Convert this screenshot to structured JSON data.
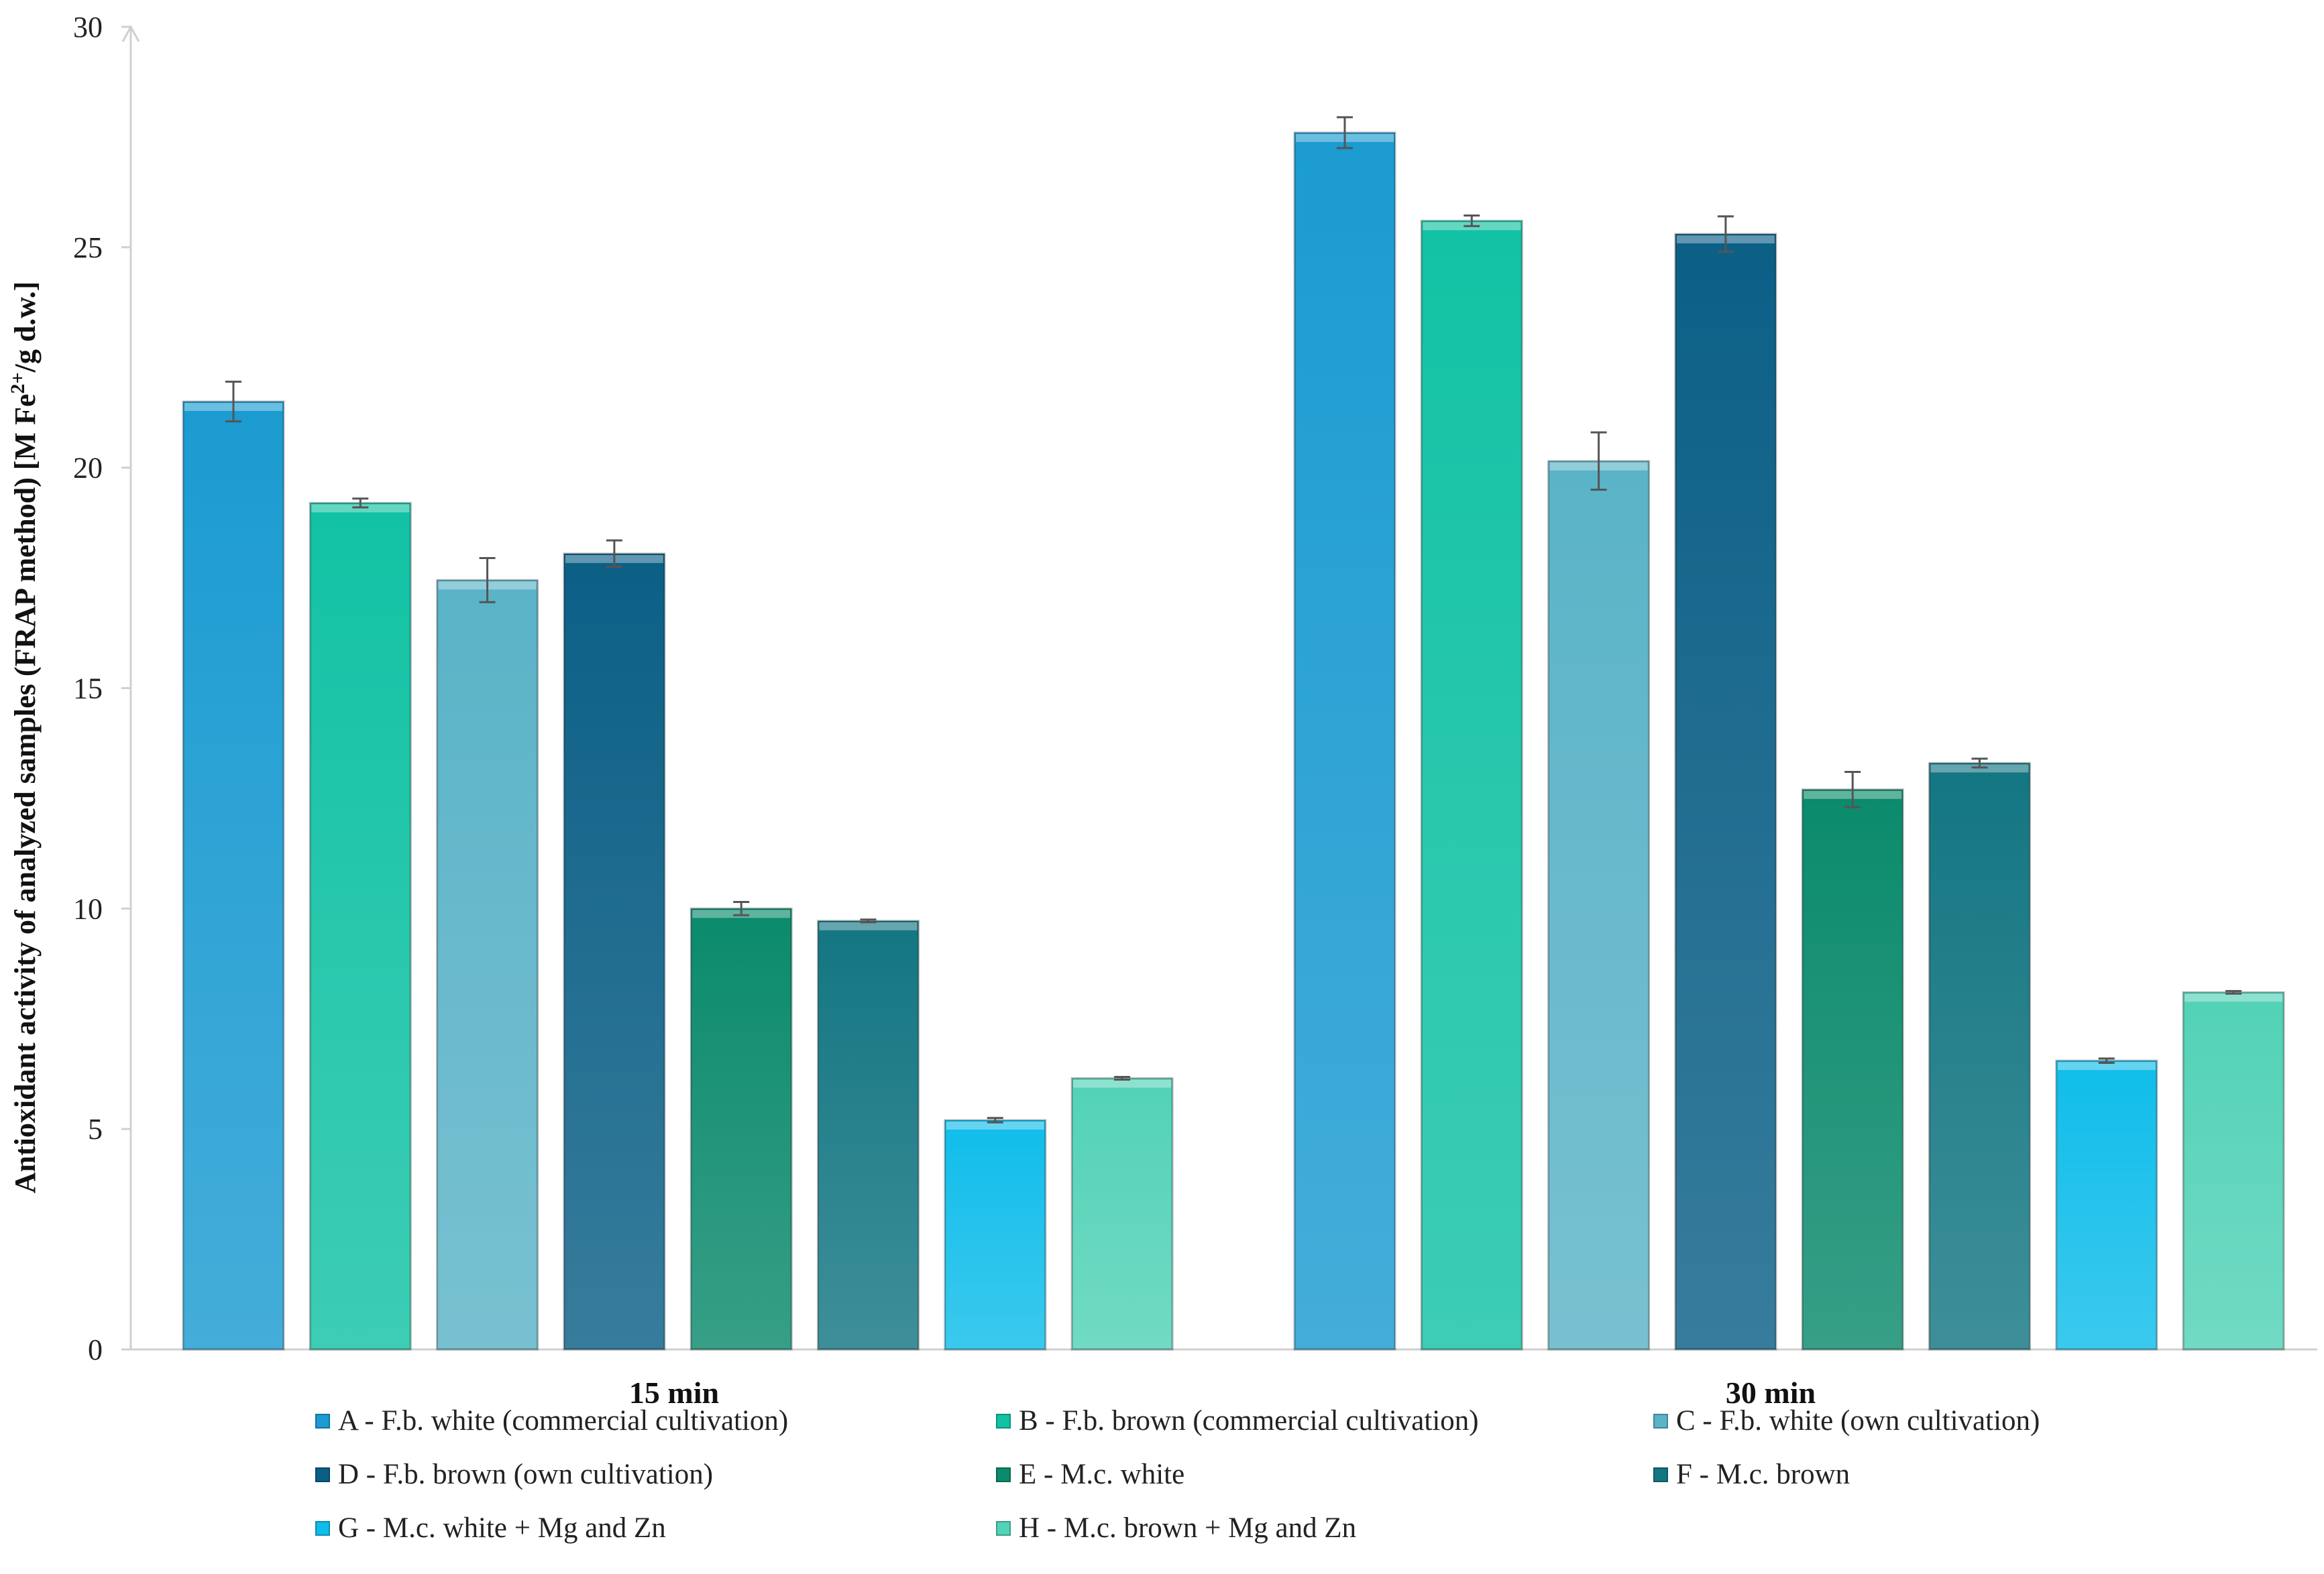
{
  "chart_data": {
    "type": "bar",
    "title": "",
    "xlabel": "",
    "ylabel": "Antioxidant activity of analyzed samples (FRAP method) [M Fe",
    "ylabel_sup": "2+",
    "ylabel_suffix": "/g d.w.]",
    "ylim": [
      0,
      30
    ],
    "yticks": [
      "0",
      "5",
      "10",
      "15",
      "20",
      "25",
      "30"
    ],
    "categories": [
      "15 min",
      "30 min"
    ],
    "legend_position": "bottom",
    "series": [
      {
        "name": "A - F.b. white (commercial cultivation)",
        "color": "#1b9bd1",
        "values": [
          21.5,
          27.6
        ],
        "errors": [
          0.45,
          0.35
        ]
      },
      {
        "name": "B - F.b. brown (commercial cultivation)",
        "color": "#12c2a4",
        "values": [
          19.2,
          25.6
        ],
        "errors": [
          0.1,
          0.12
        ]
      },
      {
        "name": "C - F.b. white (own cultivation)",
        "color": "#5ab3c7",
        "values": [
          17.45,
          20.15
        ],
        "errors": [
          0.5,
          0.65
        ]
      },
      {
        "name": "D - F.b. brown (own cultivation)",
        "color": "#0b5f86",
        "values": [
          18.05,
          25.3
        ],
        "errors": [
          0.3,
          0.4
        ]
      },
      {
        "name": "E - M.c. white",
        "color": "#0b8a6c",
        "values": [
          10.0,
          12.7
        ],
        "errors": [
          0.15,
          0.4
        ]
      },
      {
        "name": "F - M.c. brown",
        "color": "#137682",
        "values": [
          9.72,
          13.3
        ],
        "errors": [
          0.03,
          0.1
        ]
      },
      {
        "name": "G - M.c. white + Mg and Zn",
        "color": "#10bdea",
        "values": [
          5.2,
          6.55
        ],
        "errors": [
          0.05,
          0.05
        ]
      },
      {
        "name": "H - M.c. brown + Mg and Zn",
        "color": "#52d2b6",
        "values": [
          6.15,
          8.1
        ],
        "errors": [
          0.03,
          0.03
        ]
      }
    ]
  }
}
